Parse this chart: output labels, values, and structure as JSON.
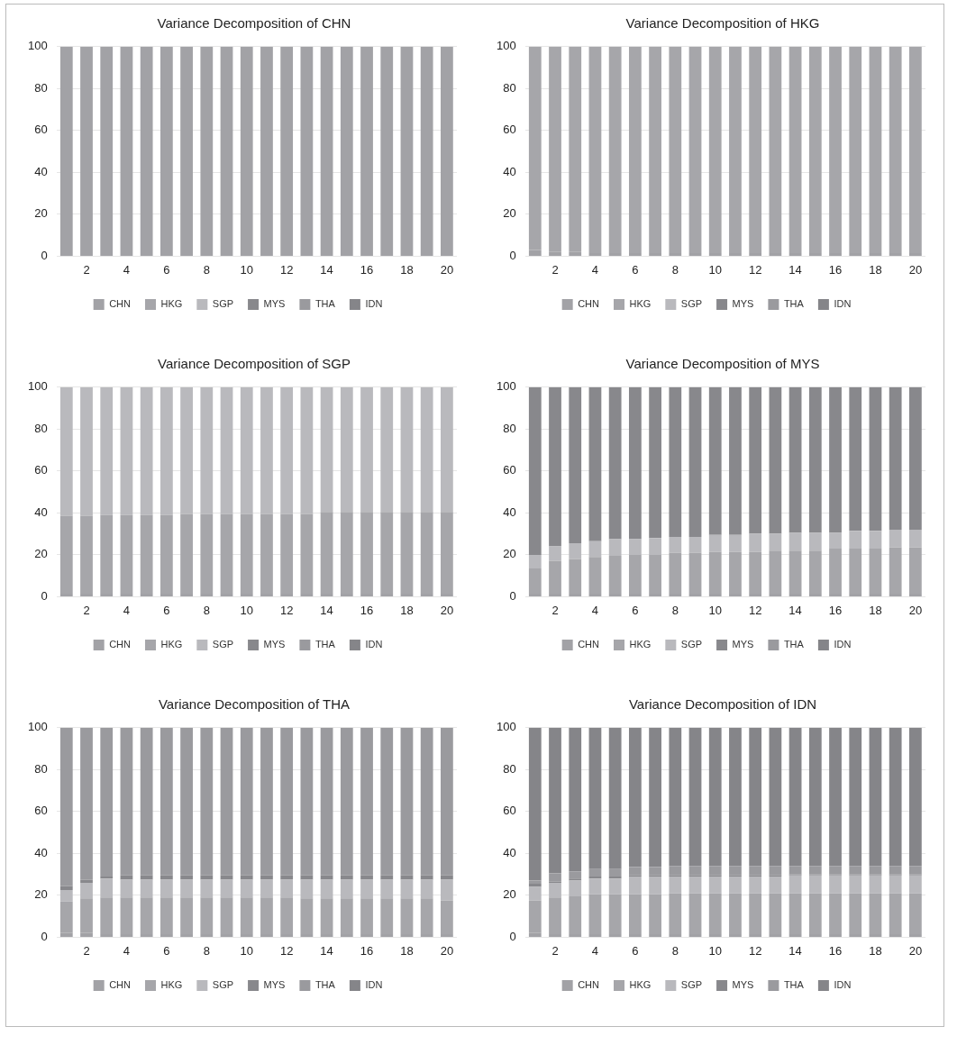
{
  "chart_data": [
    {
      "type": "bar",
      "title": "Variance Decomposition of CHN",
      "stacked": true,
      "categories": [
        null,
        "2",
        null,
        "4",
        null,
        "6",
        null,
        "8",
        null,
        "10",
        null,
        "12",
        null,
        "14",
        null,
        "16",
        null,
        "18",
        null,
        "20"
      ],
      "ylim": [
        0,
        100
      ],
      "yticks": [
        0,
        20,
        40,
        60,
        80,
        100
      ],
      "grid": "y",
      "legend": "bottom",
      "series": [
        {
          "name": "CHN",
          "color": "#a2a2a6",
          "values": [
            100,
            100,
            100,
            100,
            100,
            100,
            100,
            100,
            100,
            100,
            100,
            100,
            100,
            100,
            100,
            100,
            100,
            100,
            100,
            100
          ]
        },
        {
          "name": "HKG",
          "color": "#a6a6aa",
          "values": [
            0,
            0,
            0,
            0,
            0,
            0,
            0,
            0,
            0,
            0,
            0,
            0,
            0,
            0,
            0,
            0,
            0,
            0,
            0,
            0
          ]
        },
        {
          "name": "SGP",
          "color": "#b9b9bd",
          "values": [
            0,
            0,
            0,
            0,
            0,
            0,
            0,
            0,
            0,
            0,
            0,
            0,
            0,
            0,
            0,
            0,
            0,
            0,
            0,
            0
          ]
        },
        {
          "name": "MYS",
          "color": "#88888c",
          "values": [
            0,
            0,
            0,
            0,
            0,
            0,
            0,
            0,
            0,
            0,
            0,
            0,
            0,
            0,
            0,
            0,
            0,
            0,
            0,
            0
          ]
        },
        {
          "name": "THA",
          "color": "#9a9a9e",
          "values": [
            0,
            0,
            0,
            0,
            0,
            0,
            0,
            0,
            0,
            0,
            0,
            0,
            0,
            0,
            0,
            0,
            0,
            0,
            0,
            0
          ]
        },
        {
          "name": "IDN",
          "color": "#858589",
          "values": [
            0,
            0,
            0,
            0,
            0,
            0,
            0,
            0,
            0,
            0,
            0,
            0,
            0,
            0,
            0,
            0,
            0,
            0,
            0,
            0
          ]
        }
      ]
    },
    {
      "type": "bar",
      "title": "Variance Decomposition of HKG",
      "stacked": true,
      "categories": [
        null,
        "2",
        null,
        "4",
        null,
        "6",
        null,
        "8",
        null,
        "10",
        null,
        "12",
        null,
        "14",
        null,
        "16",
        null,
        "18",
        null,
        "20"
      ],
      "ylim": [
        0,
        100
      ],
      "yticks": [
        0,
        20,
        40,
        60,
        80,
        100
      ],
      "grid": "y",
      "legend": "bottom",
      "series": [
        {
          "name": "CHN",
          "color": "#a2a2a6",
          "values": [
            3,
            2,
            2,
            1.5,
            1.5,
            1.5,
            1.5,
            1.5,
            1.5,
            1.5,
            1.5,
            1.5,
            1.5,
            1.5,
            1.5,
            1.5,
            1.5,
            1.5,
            1.5,
            1.5
          ]
        },
        {
          "name": "HKG",
          "color": "#a6a6aa",
          "values": [
            97,
            98,
            98,
            98.5,
            98.5,
            98.5,
            98.5,
            98.5,
            98.5,
            98.5,
            98.5,
            98.5,
            98.5,
            98.5,
            98.5,
            98.5,
            98.5,
            98.5,
            98.5,
            98.5
          ]
        },
        {
          "name": "SGP",
          "color": "#b9b9bd",
          "values": [
            0,
            0,
            0,
            0,
            0,
            0,
            0,
            0,
            0,
            0,
            0,
            0,
            0,
            0,
            0,
            0,
            0,
            0,
            0,
            0
          ]
        },
        {
          "name": "MYS",
          "color": "#88888c",
          "values": [
            0,
            0,
            0,
            0,
            0,
            0,
            0,
            0,
            0,
            0,
            0,
            0,
            0,
            0,
            0,
            0,
            0,
            0,
            0,
            0
          ]
        },
        {
          "name": "THA",
          "color": "#9a9a9e",
          "values": [
            0,
            0,
            0,
            0,
            0,
            0,
            0,
            0,
            0,
            0,
            0,
            0,
            0,
            0,
            0,
            0,
            0,
            0,
            0,
            0
          ]
        },
        {
          "name": "IDN",
          "color": "#858589",
          "values": [
            0,
            0,
            0,
            0,
            0,
            0,
            0,
            0,
            0,
            0,
            0,
            0,
            0,
            0,
            0,
            0,
            0,
            0,
            0,
            0
          ]
        }
      ]
    },
    {
      "type": "bar",
      "title": "Variance Decomposition of SGP",
      "stacked": true,
      "categories": [
        null,
        "2",
        null,
        "4",
        null,
        "6",
        null,
        "8",
        null,
        "10",
        null,
        "12",
        null,
        "14",
        null,
        "16",
        null,
        "18",
        null,
        "20"
      ],
      "ylim": [
        0,
        100
      ],
      "yticks": [
        0,
        20,
        40,
        60,
        80,
        100
      ],
      "grid": "y",
      "legend": "bottom",
      "series": [
        {
          "name": "CHN",
          "color": "#a2a2a6",
          "values": [
            1.5,
            1.5,
            1.5,
            1.5,
            1.5,
            1.5,
            1.5,
            1.5,
            1.5,
            1.5,
            1.5,
            1.5,
            1.5,
            1.5,
            1.5,
            1.5,
            1.5,
            1.5,
            1.5,
            1.5
          ]
        },
        {
          "name": "HKG",
          "color": "#a6a6aa",
          "values": [
            37,
            37,
            37.5,
            37.5,
            37.5,
            37.5,
            38,
            38,
            38,
            38,
            38,
            38,
            38,
            39,
            39,
            39,
            39,
            39,
            39,
            39
          ]
        },
        {
          "name": "SGP",
          "color": "#b9b9bd",
          "values": [
            61.5,
            61.5,
            61,
            61,
            61,
            61,
            60.5,
            60.5,
            60.5,
            60.5,
            60.5,
            60.5,
            60.5,
            59.5,
            59.5,
            59.5,
            59.5,
            59.5,
            59.5,
            59.5
          ]
        },
        {
          "name": "MYS",
          "color": "#88888c",
          "values": [
            0,
            0,
            0,
            0,
            0,
            0,
            0,
            0,
            0,
            0,
            0,
            0,
            0,
            0,
            0,
            0,
            0,
            0,
            0,
            0
          ]
        },
        {
          "name": "THA",
          "color": "#9a9a9e",
          "values": [
            0,
            0,
            0,
            0,
            0,
            0,
            0,
            0,
            0,
            0,
            0,
            0,
            0,
            0,
            0,
            0,
            0,
            0,
            0,
            0
          ]
        },
        {
          "name": "IDN",
          "color": "#858589",
          "values": [
            0,
            0,
            0,
            0,
            0,
            0,
            0,
            0,
            0,
            0,
            0,
            0,
            0,
            0,
            0,
            0,
            0,
            0,
            0,
            0
          ]
        }
      ]
    },
    {
      "type": "bar",
      "title": "Variance Decomposition of MYS",
      "stacked": true,
      "categories": [
        null,
        "2",
        null,
        "4",
        null,
        "6",
        null,
        "8",
        null,
        "10",
        null,
        "12",
        null,
        "14",
        null,
        "16",
        null,
        "18",
        null,
        "20"
      ],
      "ylim": [
        0,
        100
      ],
      "yticks": [
        0,
        20,
        40,
        60,
        80,
        100
      ],
      "grid": "y",
      "legend": "bottom",
      "series": [
        {
          "name": "CHN",
          "color": "#a2a2a6",
          "values": [
            1.5,
            1.5,
            1.5,
            1.5,
            1.5,
            1.5,
            1.5,
            1.5,
            1.5,
            1.5,
            1.5,
            1.5,
            1.5,
            1.5,
            1.5,
            1.5,
            1.5,
            1.5,
            1.5,
            1.5
          ]
        },
        {
          "name": "HKG",
          "color": "#a6a6aa",
          "values": [
            12,
            15.5,
            16.5,
            17.5,
            18,
            18.5,
            18.5,
            19.5,
            19.5,
            20,
            20,
            20,
            20.5,
            20.5,
            20.5,
            21.5,
            21.5,
            21.5,
            22,
            22
          ]
        },
        {
          "name": "SGP",
          "color": "#b9b9bd",
          "values": [
            6.5,
            7,
            7.5,
            7.5,
            8,
            7.5,
            8,
            7.5,
            7.5,
            8,
            8,
            8.5,
            8,
            8.5,
            8.5,
            7.5,
            8.5,
            8.5,
            8.5,
            8.5
          ]
        },
        {
          "name": "MYS",
          "color": "#88888c",
          "values": [
            80,
            76,
            74.5,
            73.5,
            72.5,
            72.5,
            72,
            71.5,
            71.5,
            70.5,
            70.5,
            70,
            70,
            69.5,
            69.5,
            69.5,
            68.5,
            68.5,
            68,
            68
          ]
        },
        {
          "name": "THA",
          "color": "#9a9a9e",
          "values": [
            0,
            0,
            0,
            0,
            0,
            0,
            0,
            0,
            0,
            0,
            0,
            0,
            0,
            0,
            0,
            0,
            0,
            0,
            0,
            0
          ]
        },
        {
          "name": "IDN",
          "color": "#858589",
          "values": [
            0,
            0,
            0,
            0,
            0,
            0,
            0,
            0,
            0,
            0,
            0,
            0,
            0,
            0,
            0,
            0,
            0,
            0,
            0,
            0
          ]
        }
      ]
    },
    {
      "type": "bar",
      "title": "Variance Decomposition of THA",
      "stacked": true,
      "categories": [
        null,
        "2",
        null,
        "4",
        null,
        "6",
        null,
        "8",
        null,
        "10",
        null,
        "12",
        null,
        "14",
        null,
        "16",
        null,
        "18",
        null,
        "20"
      ],
      "ylim": [
        0,
        100
      ],
      "yticks": [
        0,
        20,
        40,
        60,
        80,
        100
      ],
      "grid": "y",
      "legend": "bottom",
      "series": [
        {
          "name": "CHN",
          "color": "#a2a2a6",
          "values": [
            2,
            2,
            1.5,
            1.5,
            1.5,
            1.5,
            1.5,
            1.5,
            1.5,
            1.5,
            1.5,
            1.5,
            1.5,
            1.5,
            1.5,
            1.5,
            1.5,
            1.5,
            1.5,
            1.5
          ]
        },
        {
          "name": "HKG",
          "color": "#a6a6aa",
          "values": [
            15,
            16.5,
            17.5,
            17.5,
            17.5,
            17.5,
            17.5,
            17.5,
            17.5,
            17.5,
            17.5,
            17.5,
            17,
            17,
            17,
            17,
            17,
            17,
            17,
            16
          ]
        },
        {
          "name": "SGP",
          "color": "#b9b9bd",
          "values": [
            5.5,
            7.5,
            9,
            8.5,
            8.5,
            8.5,
            8.5,
            8.5,
            8.5,
            8.5,
            8.5,
            8.5,
            9,
            9,
            9,
            9,
            9,
            9,
            9,
            10
          ]
        },
        {
          "name": "MYS",
          "color": "#88888c",
          "values": [
            2,
            1.5,
            1,
            2,
            2,
            2,
            2,
            2,
            2,
            2,
            2,
            2,
            2,
            2,
            2,
            2,
            2,
            2,
            2,
            2
          ]
        },
        {
          "name": "THA",
          "color": "#9a9a9e",
          "values": [
            75.5,
            72.5,
            71,
            70.5,
            70.5,
            70.5,
            70.5,
            70.5,
            70.5,
            70.5,
            70.5,
            70.5,
            70.5,
            70.5,
            70.5,
            70.5,
            70.5,
            70.5,
            70.5,
            70.5
          ]
        },
        {
          "name": "IDN",
          "color": "#858589",
          "values": [
            0,
            0,
            0,
            0,
            0,
            0,
            0,
            0,
            0,
            0,
            0,
            0,
            0,
            0,
            0,
            0,
            0,
            0,
            0,
            0
          ]
        }
      ]
    },
    {
      "type": "bar",
      "title": "Variance Decomposition of IDN",
      "stacked": true,
      "categories": [
        null,
        "2",
        null,
        "4",
        null,
        "6",
        null,
        "8",
        null,
        "10",
        null,
        "12",
        null,
        "14",
        null,
        "16",
        null,
        "18",
        null,
        "20"
      ],
      "ylim": [
        0,
        100
      ],
      "yticks": [
        0,
        20,
        40,
        60,
        80,
        100
      ],
      "grid": "y",
      "legend": "bottom",
      "series": [
        {
          "name": "CHN",
          "color": "#a2a2a6",
          "values": [
            2,
            1.5,
            1.5,
            1.5,
            1.5,
            1.5,
            1.5,
            1.5,
            1.5,
            1.5,
            1.5,
            1.5,
            1.5,
            1.5,
            1.5,
            1.5,
            1.5,
            1.5,
            1.5,
            1.5
          ]
        },
        {
          "name": "HKG",
          "color": "#a6a6aa",
          "values": [
            15.5,
            17.5,
            18,
            19,
            19,
            19,
            19,
            19.5,
            19.5,
            19.5,
            19.5,
            19.5,
            19.5,
            19.5,
            19.5,
            19.5,
            19.5,
            19.5,
            19.5,
            19.5
          ]
        },
        {
          "name": "SGP",
          "color": "#b9b9bd",
          "values": [
            6.5,
            7,
            7.5,
            7.5,
            7.5,
            8.5,
            8.5,
            8,
            8,
            8,
            8,
            8,
            8,
            8.5,
            8.5,
            8.5,
            8.5,
            8.5,
            8.5,
            8.5
          ]
        },
        {
          "name": "MYS",
          "color": "#88888c",
          "values": [
            1.5,
            0.5,
            1,
            1,
            1,
            0.5,
            0.5,
            0.5,
            0.5,
            0.5,
            0.5,
            0.5,
            0.5,
            0.5,
            0.5,
            0.5,
            0.5,
            0.5,
            0.5,
            0.5
          ]
        },
        {
          "name": "THA",
          "color": "#9a9a9e",
          "values": [
            1.5,
            4,
            3.5,
            3.5,
            3.5,
            4,
            4,
            4.5,
            4.5,
            4.5,
            4.5,
            4.5,
            4.5,
            4,
            4,
            4,
            4,
            4,
            4,
            4
          ]
        },
        {
          "name": "IDN",
          "color": "#858589",
          "values": [
            73,
            69.5,
            68.5,
            67.5,
            67.5,
            66.5,
            66.5,
            66,
            66,
            66,
            66,
            66,
            66,
            66,
            66,
            66,
            66,
            66,
            66,
            66
          ]
        }
      ]
    }
  ]
}
